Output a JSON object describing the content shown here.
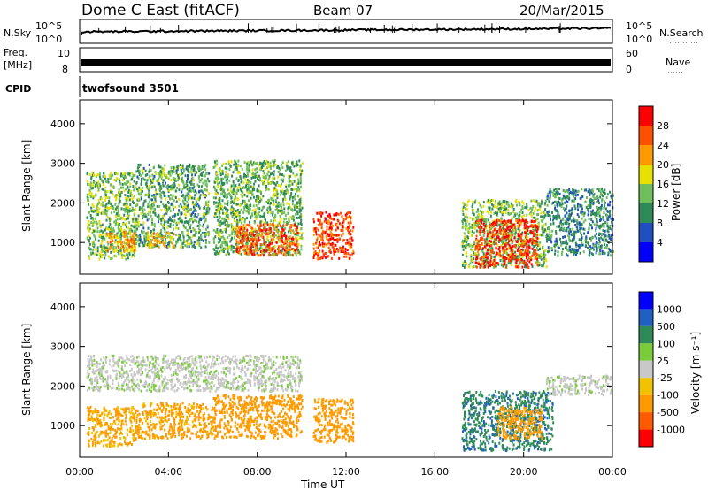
{
  "header": {
    "title": "Dome C East (fitACF)",
    "beam": "Beam 07",
    "date": "20/Mar/2015"
  },
  "strip": {
    "nsky_label": "N.Sky",
    "nsky_ticks": [
      "10^5",
      "10^0"
    ],
    "nsearch_label": "N.Search",
    "nsearch_ticks": [
      "10^5",
      "10^0"
    ],
    "freq_label": "Freq.",
    "freq_unit": "[MHz]",
    "freq_ticks": [
      "10",
      "8"
    ],
    "nave_label": "Nave",
    "nave_ticks": [
      "60",
      "0"
    ],
    "cpid_label": "CPID",
    "cpid_value": "twofsound 3501"
  },
  "colorbars": {
    "power": {
      "title": "Power [dB]",
      "ticks": [
        "28",
        "24",
        "20",
        "16",
        "12",
        "8",
        "4"
      ]
    },
    "velocity": {
      "title": "Velocity [m s⁻¹]",
      "ticks": [
        "1000",
        "500",
        "100",
        "25",
        "-25",
        "-100",
        "-500",
        "-1000"
      ]
    }
  },
  "chart_data": [
    {
      "type": "heatmap",
      "panel": "power",
      "ylabel": "Slant Range [km]",
      "xlabel": "",
      "xlim": [
        0,
        24
      ],
      "ylim": [
        200,
        4600
      ],
      "yticks": [
        1000,
        2000,
        3000,
        4000
      ],
      "colorbar": "Power [dB]",
      "echo_regions": [
        {
          "t0": 0.3,
          "t1": 2.5,
          "r0": 600,
          "r1": 2800,
          "level": 14
        },
        {
          "t0": 1.2,
          "t1": 2.6,
          "r0": 800,
          "r1": 1300,
          "level": 22
        },
        {
          "t0": 2.5,
          "t1": 5.8,
          "r0": 900,
          "r1": 3000,
          "level": 12
        },
        {
          "t0": 3.0,
          "t1": 4.2,
          "r0": 900,
          "r1": 1300,
          "level": 20
        },
        {
          "t0": 6.0,
          "t1": 10.0,
          "r0": 700,
          "r1": 3100,
          "level": 13
        },
        {
          "t0": 7.0,
          "t1": 9.8,
          "r0": 700,
          "r1": 1500,
          "level": 26
        },
        {
          "t0": 10.5,
          "t1": 12.3,
          "r0": 600,
          "r1": 1800,
          "level": 27
        },
        {
          "t0": 17.2,
          "t1": 21.0,
          "r0": 400,
          "r1": 2100,
          "level": 14
        },
        {
          "t0": 17.8,
          "t1": 20.6,
          "r0": 400,
          "r1": 1600,
          "level": 28
        },
        {
          "t0": 21.0,
          "t1": 24.0,
          "r0": 700,
          "r1": 2400,
          "level": 10
        }
      ]
    },
    {
      "type": "heatmap",
      "panel": "velocity",
      "ylabel": "Slant Range [km]",
      "xlabel": "Time UT",
      "xlim": [
        0,
        24
      ],
      "ylim": [
        200,
        4600
      ],
      "yticks": [
        1000,
        2000,
        3000,
        4000
      ],
      "xticks": [
        "00:00",
        "04:00",
        "08:00",
        "12:00",
        "16:00",
        "20:00",
        "00:00"
      ],
      "colorbar": "Velocity [m s⁻¹]",
      "echo_regions": [
        {
          "t0": 0.3,
          "t1": 2.5,
          "r0": 500,
          "r1": 1500,
          "level": -120
        },
        {
          "t0": 0.3,
          "t1": 10.0,
          "r0": 1900,
          "r1": 2800,
          "level": 10
        },
        {
          "t0": 2.5,
          "t1": 6.0,
          "r0": 700,
          "r1": 1600,
          "level": -150
        },
        {
          "t0": 6.0,
          "t1": 10.0,
          "r0": 700,
          "r1": 1800,
          "level": -300
        },
        {
          "t0": 10.5,
          "t1": 12.3,
          "r0": 600,
          "r1": 1700,
          "level": -250
        },
        {
          "t0": 17.2,
          "t1": 21.3,
          "r0": 400,
          "r1": 1900,
          "level": 400
        },
        {
          "t0": 18.8,
          "t1": 20.8,
          "r0": 700,
          "r1": 1500,
          "level": -300
        },
        {
          "t0": 21.0,
          "t1": 24.0,
          "r0": 1800,
          "r1": 2300,
          "level": 10
        }
      ]
    }
  ],
  "colors": {
    "power_scale": [
      "#0000ff",
      "#2050c0",
      "#2e8b57",
      "#6fbf5a",
      "#e8e000",
      "#ff9a00",
      "#ff5000",
      "#ff0000"
    ],
    "velocity_scale": [
      "#ff0000",
      "#ff5a00",
      "#ff9a00",
      "#f2c200",
      "#c8c8c8",
      "#7acc3a",
      "#2e8b57",
      "#2060c0",
      "#0000ff"
    ]
  }
}
